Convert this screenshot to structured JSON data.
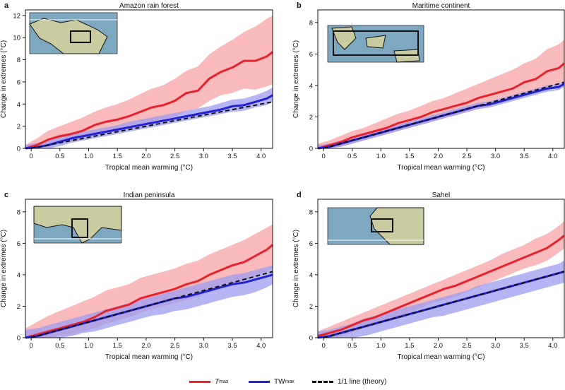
{
  "colors": {
    "tmax": "#e8222b",
    "tmax_band": "#f7a3a6",
    "tw": "#2222d4",
    "tw_band": "#9c9cf0",
    "theory": "#111111",
    "map_sea": "#7ea7c0",
    "map_land": "#c9cba0"
  },
  "legend": {
    "tmax_base": "T",
    "tmax_sub": "max",
    "tw_base": "TW",
    "tw_sub": "max",
    "theory": "1/1 line (theory)"
  },
  "chart_data": [
    {
      "panel": "a",
      "title": "Amazon rain forest",
      "type": "line",
      "xlabel": "Tropical mean warming (°C)",
      "ylabel": "Change in extremes (°C)",
      "xlim": [
        -0.1,
        4.2
      ],
      "ylim": [
        0,
        12.5
      ],
      "xticks": [
        0,
        0.5,
        1.0,
        1.5,
        2.0,
        2.5,
        3.0,
        3.5,
        4.0
      ],
      "xtick_labels": [
        "0",
        "0.5",
        "1.0",
        "1.5",
        "2.0",
        "2.5",
        "3.0",
        "3.5",
        "4.0"
      ],
      "yticks": [
        0,
        2,
        4,
        6,
        8,
        10,
        12
      ],
      "ytick_labels": [
        "0",
        "2",
        "4",
        "6",
        "8",
        "10",
        "12"
      ],
      "grid": false,
      "x": [
        -0.1,
        0.1,
        0.3,
        0.5,
        0.7,
        0.9,
        1.1,
        1.3,
        1.5,
        1.7,
        1.9,
        2.1,
        2.3,
        2.5,
        2.7,
        2.9,
        3.1,
        3.3,
        3.5,
        3.7,
        3.9,
        4.1,
        4.2
      ],
      "series": [
        {
          "name": "Tmax",
          "values": [
            0.0,
            0.3,
            0.8,
            1.1,
            1.3,
            1.6,
            2.1,
            2.4,
            2.6,
            2.9,
            3.3,
            3.7,
            3.9,
            4.3,
            5.0,
            5.2,
            6.3,
            6.9,
            7.3,
            7.9,
            7.9,
            8.3,
            8.7
          ],
          "lower": [
            0.0,
            0.0,
            0.2,
            0.5,
            0.6,
            0.8,
            1.2,
            1.4,
            1.6,
            1.8,
            2.1,
            2.4,
            2.6,
            2.9,
            3.4,
            3.6,
            4.3,
            4.8,
            5.0,
            5.4,
            5.3,
            5.6,
            5.8
          ],
          "upper": [
            0.3,
            0.9,
            1.6,
            2.0,
            2.4,
            2.8,
            3.3,
            3.7,
            4.0,
            4.4,
            4.9,
            5.4,
            5.7,
            6.3,
            7.0,
            7.4,
            8.5,
            9.2,
            9.8,
            10.5,
            11.0,
            11.7,
            12.0
          ]
        },
        {
          "name": "TWmax",
          "values": [
            0.0,
            0.1,
            0.3,
            0.6,
            0.9,
            1.1,
            1.3,
            1.5,
            1.7,
            1.9,
            2.1,
            2.3,
            2.5,
            2.7,
            2.9,
            3.1,
            3.3,
            3.5,
            3.8,
            3.9,
            4.2,
            4.5,
            4.8
          ],
          "lower": [
            0.0,
            0.0,
            0.0,
            0.2,
            0.5,
            0.7,
            0.9,
            1.1,
            1.3,
            1.5,
            1.7,
            1.9,
            2.1,
            2.3,
            2.5,
            2.7,
            2.9,
            3.1,
            3.3,
            3.4,
            3.7,
            3.9,
            4.2
          ],
          "upper": [
            0.3,
            0.5,
            0.7,
            1.0,
            1.3,
            1.5,
            1.7,
            1.9,
            2.1,
            2.4,
            2.6,
            2.8,
            3.0,
            3.2,
            3.4,
            3.6,
            3.8,
            4.1,
            4.4,
            4.5,
            4.8,
            5.2,
            5.5
          ]
        },
        {
          "name": "1/1 line (theory)",
          "style": "dashed",
          "x": [
            0.0,
            4.2
          ],
          "values": [
            0.0,
            4.2
          ]
        }
      ]
    },
    {
      "panel": "b",
      "title": "Maritime continent",
      "type": "line",
      "xlabel": "Tropical mean warming (°C)",
      "ylabel": "Change in extremes (°C)",
      "xlim": [
        -0.1,
        4.2
      ],
      "ylim": [
        0,
        8.8
      ],
      "xticks": [
        0,
        0.5,
        1.0,
        1.5,
        2.0,
        2.5,
        3.0,
        3.5,
        4.0
      ],
      "xtick_labels": [
        "0",
        "0.5",
        "1.0",
        "1.5",
        "2.0",
        "2.5",
        "3.0",
        "3.5",
        "4.0"
      ],
      "yticks": [
        0,
        2,
        4,
        6,
        8
      ],
      "ytick_labels": [
        "0",
        "2",
        "4",
        "6",
        "8"
      ],
      "grid": false,
      "x": [
        -0.1,
        0.1,
        0.3,
        0.5,
        0.7,
        0.9,
        1.1,
        1.3,
        1.5,
        1.7,
        1.9,
        2.1,
        2.3,
        2.5,
        2.7,
        2.9,
        3.1,
        3.3,
        3.5,
        3.7,
        3.9,
        4.1,
        4.2
      ],
      "series": [
        {
          "name": "Tmax",
          "values": [
            0.0,
            0.2,
            0.4,
            0.7,
            0.9,
            1.1,
            1.3,
            1.6,
            1.8,
            2.0,
            2.3,
            2.5,
            2.7,
            2.9,
            3.2,
            3.4,
            3.6,
            3.8,
            4.2,
            4.4,
            4.9,
            5.1,
            5.4
          ],
          "lower": [
            0.0,
            0.0,
            0.1,
            0.3,
            0.5,
            0.7,
            0.9,
            1.1,
            1.3,
            1.5,
            1.7,
            1.9,
            2.1,
            2.3,
            2.5,
            2.7,
            2.9,
            3.1,
            3.4,
            3.6,
            3.9,
            4.1,
            4.3
          ],
          "upper": [
            0.3,
            0.5,
            0.8,
            1.1,
            1.3,
            1.6,
            1.9,
            2.2,
            2.4,
            2.7,
            3.0,
            3.2,
            3.5,
            3.8,
            4.1,
            4.4,
            4.7,
            5.0,
            5.4,
            5.7,
            6.3,
            6.6,
            6.9
          ]
        },
        {
          "name": "TWmax",
          "values": [
            0.0,
            0.1,
            0.3,
            0.5,
            0.7,
            0.9,
            1.1,
            1.3,
            1.5,
            1.7,
            1.9,
            2.1,
            2.3,
            2.5,
            2.7,
            2.8,
            3.0,
            3.2,
            3.4,
            3.6,
            3.8,
            3.9,
            4.1
          ],
          "lower": [
            0.0,
            0.0,
            0.1,
            0.3,
            0.5,
            0.7,
            0.9,
            1.1,
            1.3,
            1.5,
            1.7,
            1.9,
            2.1,
            2.3,
            2.5,
            2.6,
            2.8,
            3.0,
            3.2,
            3.4,
            3.6,
            3.7,
            3.9
          ],
          "upper": [
            0.2,
            0.3,
            0.5,
            0.7,
            0.9,
            1.1,
            1.3,
            1.5,
            1.7,
            1.9,
            2.1,
            2.3,
            2.5,
            2.7,
            2.9,
            3.0,
            3.2,
            3.4,
            3.6,
            3.8,
            4.0,
            4.1,
            4.3
          ]
        },
        {
          "name": "1/1 line (theory)",
          "style": "dashed",
          "x": [
            0.0,
            4.2
          ],
          "values": [
            0.0,
            4.2
          ]
        }
      ]
    },
    {
      "panel": "c",
      "title": "Indian peninsula",
      "type": "line",
      "xlabel": "Tropical mean warming (°C)",
      "ylabel": "Change in extremes (°C)",
      "xlim": [
        -0.1,
        4.2
      ],
      "ylim": [
        0,
        8.8
      ],
      "xticks": [
        0,
        0.5,
        1.0,
        1.5,
        2.0,
        2.5,
        3.0,
        3.5,
        4.0
      ],
      "xtick_labels": [
        "0",
        "0.5",
        "1.0",
        "1.5",
        "2.0",
        "2.5",
        "3.0",
        "3.5",
        "4.0"
      ],
      "yticks": [
        0,
        2,
        4,
        6,
        8
      ],
      "ytick_labels": [
        "0",
        "2",
        "4",
        "6",
        "8"
      ],
      "grid": false,
      "x": [
        -0.1,
        0.1,
        0.3,
        0.5,
        0.7,
        0.9,
        1.1,
        1.3,
        1.5,
        1.7,
        1.9,
        2.1,
        2.3,
        2.5,
        2.7,
        2.9,
        3.1,
        3.3,
        3.5,
        3.7,
        3.9,
        4.1,
        4.2
      ],
      "series": [
        {
          "name": "Tmax",
          "values": [
            0.0,
            0.2,
            0.4,
            0.6,
            0.8,
            1.0,
            1.3,
            1.7,
            1.9,
            2.1,
            2.5,
            2.7,
            2.9,
            3.1,
            3.4,
            3.6,
            4.0,
            4.3,
            4.6,
            4.8,
            5.2,
            5.6,
            5.9
          ],
          "lower": [
            0.0,
            0.0,
            0.0,
            0.1,
            0.2,
            0.4,
            0.6,
            0.9,
            1.1,
            1.3,
            1.6,
            1.8,
            2.0,
            2.2,
            2.4,
            2.6,
            2.9,
            3.2,
            3.4,
            3.6,
            3.9,
            4.2,
            4.4
          ],
          "upper": [
            0.6,
            1.0,
            1.4,
            1.7,
            2.0,
            2.3,
            2.6,
            3.0,
            3.2,
            3.4,
            3.8,
            4.0,
            4.2,
            4.4,
            4.7,
            4.9,
            5.3,
            5.6,
            5.9,
            6.2,
            6.6,
            7.0,
            7.2
          ]
        },
        {
          "name": "TWmax",
          "values": [
            0.0,
            0.1,
            0.3,
            0.5,
            0.7,
            0.9,
            1.1,
            1.3,
            1.5,
            1.7,
            1.9,
            2.1,
            2.3,
            2.5,
            2.6,
            2.8,
            3.0,
            3.2,
            3.4,
            3.5,
            3.7,
            3.9,
            4.0
          ],
          "lower": [
            0.0,
            0.0,
            0.0,
            0.0,
            0.1,
            0.3,
            0.4,
            0.6,
            0.8,
            1.0,
            1.2,
            1.4,
            1.5,
            1.7,
            1.8,
            2.0,
            2.2,
            2.4,
            2.6,
            2.7,
            2.9,
            3.2,
            3.4
          ],
          "upper": [
            0.5,
            0.6,
            0.8,
            1.0,
            1.2,
            1.4,
            1.6,
            1.8,
            2.0,
            2.2,
            2.4,
            2.6,
            2.8,
            3.0,
            3.2,
            3.4,
            3.6,
            3.8,
            4.0,
            4.1,
            4.3,
            4.5,
            4.6
          ]
        },
        {
          "name": "1/1 line (theory)",
          "style": "dashed",
          "x": [
            0.0,
            4.2
          ],
          "values": [
            0.0,
            4.2
          ]
        }
      ]
    },
    {
      "panel": "d",
      "title": "Sahel",
      "type": "line",
      "xlabel": "Tropical mean warming (°C)",
      "ylabel": "Change in extremes (°C)",
      "xlim": [
        -0.1,
        4.2
      ],
      "ylim": [
        0,
        8.8
      ],
      "xticks": [
        0,
        0.5,
        1.0,
        1.5,
        2.0,
        2.5,
        3.0,
        3.5,
        4.0
      ],
      "xtick_labels": [
        "0",
        "0.5",
        "1.0",
        "1.5",
        "2.0",
        "2.5",
        "3.0",
        "3.5",
        "4.0"
      ],
      "yticks": [
        0,
        2,
        4,
        6,
        8
      ],
      "ytick_labels": [
        "0",
        "2",
        "4",
        "6",
        "8"
      ],
      "grid": false,
      "x": [
        -0.1,
        0.1,
        0.3,
        0.5,
        0.7,
        0.9,
        1.1,
        1.3,
        1.5,
        1.7,
        1.9,
        2.1,
        2.3,
        2.5,
        2.7,
        2.9,
        3.1,
        3.3,
        3.5,
        3.7,
        3.9,
        4.1,
        4.2
      ],
      "series": [
        {
          "name": "Tmax",
          "values": [
            0.1,
            0.3,
            0.5,
            0.8,
            1.1,
            1.3,
            1.6,
            1.9,
            2.2,
            2.5,
            2.8,
            3.1,
            3.3,
            3.6,
            3.9,
            4.2,
            4.5,
            4.8,
            5.1,
            5.4,
            5.7,
            6.2,
            6.5
          ],
          "lower": [
            0.0,
            0.0,
            0.1,
            0.3,
            0.6,
            0.8,
            1.0,
            1.3,
            1.6,
            1.9,
            2.2,
            2.4,
            2.6,
            2.9,
            3.2,
            3.5,
            3.8,
            4.1,
            4.4,
            4.6,
            4.9,
            5.4,
            5.7
          ],
          "upper": [
            0.4,
            0.7,
            1.0,
            1.3,
            1.6,
            1.9,
            2.2,
            2.5,
            2.8,
            3.1,
            3.4,
            3.7,
            4.0,
            4.3,
            4.6,
            4.9,
            5.3,
            5.6,
            5.9,
            6.3,
            6.6,
            7.1,
            7.4
          ]
        },
        {
          "name": "TWmax",
          "values": [
            0.0,
            0.1,
            0.3,
            0.5,
            0.7,
            0.9,
            1.1,
            1.3,
            1.5,
            1.7,
            1.9,
            2.1,
            2.3,
            2.5,
            2.7,
            2.9,
            3.1,
            3.3,
            3.5,
            3.7,
            3.9,
            4.1,
            4.2
          ],
          "lower": [
            0.0,
            0.0,
            0.0,
            0.0,
            0.1,
            0.3,
            0.5,
            0.7,
            0.9,
            1.1,
            1.3,
            1.4,
            1.6,
            1.8,
            2.0,
            2.2,
            2.4,
            2.6,
            2.8,
            3.0,
            3.2,
            3.4,
            3.5
          ],
          "upper": [
            0.4,
            0.5,
            0.7,
            0.9,
            1.2,
            1.4,
            1.6,
            1.8,
            2.0,
            2.2,
            2.4,
            2.6,
            2.8,
            3.0,
            3.3,
            3.5,
            3.7,
            3.9,
            4.1,
            4.3,
            4.5,
            4.7,
            4.9
          ]
        },
        {
          "name": "1/1 line (theory)",
          "style": "dashed",
          "x": [
            0.0,
            4.2
          ],
          "values": [
            0.0,
            4.2
          ]
        }
      ]
    }
  ]
}
